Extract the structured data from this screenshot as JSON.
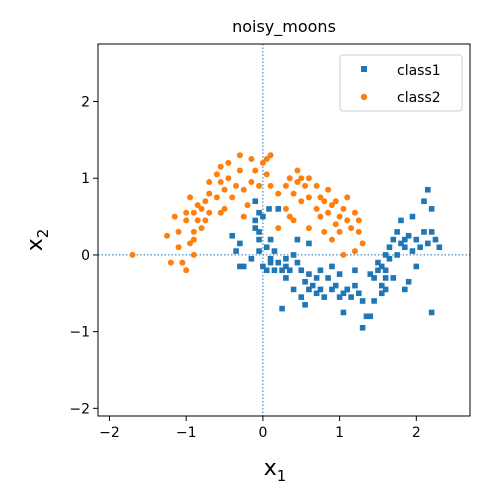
{
  "chart_data": {
    "type": "scatter",
    "title": "noisy_moons",
    "xlabel": "x",
    "xlabel_sub": "1",
    "ylabel": "x",
    "ylabel_sub": "2",
    "xlim": [
      -2.15,
      2.7
    ],
    "ylim": [
      -2.1,
      2.75
    ],
    "xticks": [
      -2,
      -1,
      0,
      1,
      2
    ],
    "yticks": [
      -2,
      -1,
      0,
      1,
      2
    ],
    "xtick_labels": [
      "−2",
      "−1",
      "0",
      "1",
      "2"
    ],
    "ytick_labels": [
      "−2",
      "−1",
      "0",
      "1",
      "2"
    ],
    "reference_lines": {
      "x": 0,
      "y": 0,
      "style": "dotted",
      "color": "#1f77b4"
    },
    "grid": false,
    "legend_position": "top-right",
    "series": [
      {
        "name": "class1",
        "marker": "square",
        "color": "#1f77b4",
        "points": [
          [
            -0.1,
            0.7
          ],
          [
            -0.05,
            0.55
          ],
          [
            -0.1,
            0.45
          ],
          [
            0.0,
            0.5
          ],
          [
            0.08,
            0.6
          ],
          [
            -0.05,
            0.3
          ],
          [
            -0.1,
            0.35
          ],
          [
            -0.05,
            0.2
          ],
          [
            0.1,
            0.2
          ],
          [
            0.05,
            0.1
          ],
          [
            -0.3,
            0.15
          ],
          [
            -0.35,
            0.05
          ],
          [
            -0.05,
            0.05
          ],
          [
            -0.15,
            -0.05
          ],
          [
            0.0,
            -0.15
          ],
          [
            0.1,
            -0.1
          ],
          [
            0.15,
            -0.2
          ],
          [
            0.2,
            -0.1
          ],
          [
            0.25,
            -0.2
          ],
          [
            0.3,
            -0.15
          ],
          [
            0.3,
            -0.05
          ],
          [
            0.4,
            0.0
          ],
          [
            0.45,
            -0.1
          ],
          [
            0.35,
            -0.2
          ],
          [
            0.45,
            0.2
          ],
          [
            0.3,
            -0.3
          ],
          [
            -0.3,
            -0.15
          ],
          [
            0.1,
            -0.05
          ],
          [
            0.05,
            -0.2
          ],
          [
            0.25,
            -0.7
          ],
          [
            0.5,
            -0.55
          ],
          [
            0.55,
            -0.35
          ],
          [
            0.6,
            0.15
          ],
          [
            0.6,
            -0.25
          ],
          [
            0.6,
            -0.45
          ],
          [
            0.55,
            -0.65
          ],
          [
            0.7,
            -0.3
          ],
          [
            0.7,
            -0.5
          ],
          [
            0.75,
            -0.45
          ],
          [
            0.8,
            -0.55
          ],
          [
            0.85,
            -0.3
          ],
          [
            0.9,
            -0.15
          ],
          [
            0.95,
            -0.4
          ],
          [
            1.0,
            -0.25
          ],
          [
            1.05,
            -0.5
          ],
          [
            1.0,
            -0.55
          ],
          [
            1.05,
            -0.75
          ],
          [
            1.1,
            -0.45
          ],
          [
            1.15,
            -0.55
          ],
          [
            1.2,
            -0.4
          ],
          [
            1.2,
            -0.2
          ],
          [
            1.25,
            -0.5
          ],
          [
            1.3,
            -0.6
          ],
          [
            1.35,
            -0.8
          ],
          [
            1.3,
            -0.95
          ],
          [
            1.4,
            -0.8
          ],
          [
            1.45,
            -0.6
          ],
          [
            1.45,
            -0.3
          ],
          [
            1.5,
            -0.2
          ],
          [
            1.5,
            -0.1
          ],
          [
            1.55,
            -0.4
          ],
          [
            1.55,
            -0.5
          ],
          [
            1.55,
            -0.15
          ],
          [
            1.6,
            -0.3
          ],
          [
            1.6,
            0.0
          ],
          [
            1.6,
            -0.2
          ],
          [
            1.65,
            -0.05
          ],
          [
            1.65,
            0.1
          ],
          [
            1.7,
            0.2
          ],
          [
            1.7,
            -0.3
          ],
          [
            1.75,
            0.0
          ],
          [
            1.75,
            0.3
          ],
          [
            1.8,
            0.15
          ],
          [
            1.8,
            0.45
          ],
          [
            1.85,
            0.1
          ],
          [
            1.85,
            0.2
          ],
          [
            1.9,
            0.25
          ],
          [
            1.95,
            0.5
          ],
          [
            1.95,
            0.05
          ],
          [
            2.0,
            0.2
          ],
          [
            2.0,
            -0.15
          ],
          [
            2.05,
            0.1
          ],
          [
            2.1,
            0.3
          ],
          [
            2.1,
            0.7
          ],
          [
            2.15,
            0.85
          ],
          [
            2.15,
            0.15
          ],
          [
            2.2,
            0.3
          ],
          [
            2.25,
            0.2
          ],
          [
            2.3,
            0.1
          ],
          [
            2.2,
            0.6
          ],
          [
            2.2,
            -0.75
          ],
          [
            1.85,
            -0.45
          ],
          [
            1.9,
            -0.35
          ],
          [
            1.6,
            -0.45
          ],
          [
            0.4,
            -0.45
          ],
          [
            0.5,
            -0.2
          ],
          [
            0.65,
            -0.4
          ],
          [
            0.9,
            -0.45
          ],
          [
            0.15,
            0.05
          ],
          [
            -0.4,
            0.25
          ],
          [
            0.2,
            0.6
          ],
          [
            -0.25,
            -0.15
          ],
          [
            1.4,
            -0.25
          ],
          [
            1.1,
            -0.45
          ],
          [
            0.75,
            -0.2
          ]
        ]
      },
      {
        "name": "class2",
        "marker": "circle",
        "color": "#ff7f0e",
        "points": [
          [
            -1.7,
            0.0
          ],
          [
            -1.25,
            0.25
          ],
          [
            -1.1,
            0.3
          ],
          [
            -1.1,
            0.1
          ],
          [
            -1.05,
            -0.1
          ],
          [
            -1.0,
            -0.2
          ],
          [
            -0.95,
            0.15
          ],
          [
            -0.9,
            0.2
          ],
          [
            -0.9,
            0.3
          ],
          [
            -1.0,
            0.55
          ],
          [
            -1.0,
            0.45
          ],
          [
            -0.95,
            0.75
          ],
          [
            -0.9,
            0.55
          ],
          [
            -0.85,
            0.45
          ],
          [
            -0.8,
            0.35
          ],
          [
            -0.85,
            0.65
          ],
          [
            -0.75,
            0.7
          ],
          [
            -0.7,
            0.55
          ],
          [
            -0.7,
            0.8
          ],
          [
            -0.6,
            0.75
          ],
          [
            -0.55,
            0.95
          ],
          [
            -0.5,
            0.85
          ],
          [
            -0.5,
            0.6
          ],
          [
            -0.45,
            1.0
          ],
          [
            -0.4,
            0.75
          ],
          [
            -0.35,
            0.9
          ],
          [
            -0.3,
            1.1
          ],
          [
            -0.25,
            0.85
          ],
          [
            -0.2,
            0.65
          ],
          [
            -0.15,
            0.95
          ],
          [
            -0.1,
            1.1
          ],
          [
            -0.05,
            0.9
          ],
          [
            0.0,
            1.2
          ],
          [
            0.05,
            1.25
          ],
          [
            0.05,
            1.05
          ],
          [
            0.1,
            1.3
          ],
          [
            0.1,
            0.9
          ],
          [
            -0.15,
            1.25
          ],
          [
            -0.3,
            1.3
          ],
          [
            -0.45,
            1.2
          ],
          [
            -0.55,
            1.15
          ],
          [
            -0.6,
            1.05
          ],
          [
            -0.7,
            0.95
          ],
          [
            -0.75,
            0.45
          ],
          [
            0.2,
            0.8
          ],
          [
            0.3,
            0.9
          ],
          [
            0.35,
            1.0
          ],
          [
            0.4,
            0.8
          ],
          [
            0.45,
            0.95
          ],
          [
            0.45,
            1.1
          ],
          [
            0.5,
            0.7
          ],
          [
            0.5,
            1.0
          ],
          [
            0.55,
            0.9
          ],
          [
            0.6,
            0.75
          ],
          [
            0.6,
            1.0
          ],
          [
            0.7,
            0.6
          ],
          [
            0.7,
            0.9
          ],
          [
            0.75,
            0.5
          ],
          [
            0.8,
            0.7
          ],
          [
            0.85,
            0.85
          ],
          [
            0.85,
            0.55
          ],
          [
            0.9,
            0.65
          ],
          [
            0.95,
            0.4
          ],
          [
            0.95,
            0.7
          ],
          [
            1.0,
            0.3
          ],
          [
            1.0,
            0.5
          ],
          [
            1.05,
            0.6
          ],
          [
            1.1,
            0.45
          ],
          [
            1.1,
            0.75
          ],
          [
            1.15,
            0.35
          ],
          [
            1.2,
            0.55
          ],
          [
            1.25,
            0.45
          ],
          [
            1.25,
            0.3
          ],
          [
            1.3,
            0.15
          ],
          [
            1.2,
            0.05
          ],
          [
            1.05,
            0.0
          ],
          [
            0.3,
            0.6
          ],
          [
            0.35,
            0.5
          ],
          [
            0.4,
            0.45
          ],
          [
            0.2,
            0.35
          ],
          [
            0.8,
            0.3
          ],
          [
            0.9,
            0.2
          ],
          [
            -1.2,
            -0.1
          ],
          [
            -0.9,
            0.0
          ],
          [
            -1.15,
            0.5
          ],
          [
            -0.8,
            0.6
          ],
          [
            -0.55,
            0.55
          ],
          [
            -0.25,
            0.5
          ],
          [
            0.6,
            0.35
          ],
          [
            0.75,
            0.75
          ]
        ]
      }
    ]
  }
}
